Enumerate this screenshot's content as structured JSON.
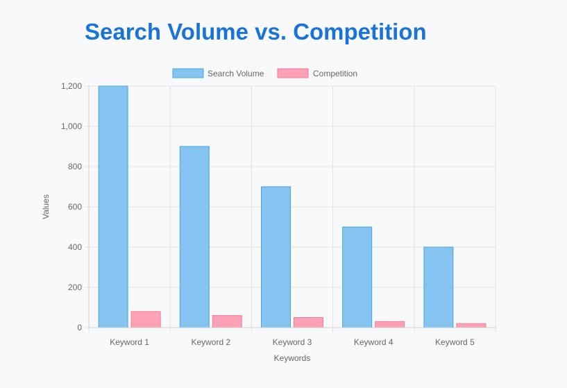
{
  "chart_data": {
    "type": "bar",
    "title": "Search Volume vs. Competition",
    "categories": [
      "Keyword 1",
      "Keyword 2",
      "Keyword 3",
      "Keyword 4",
      "Keyword 5"
    ],
    "series": [
      {
        "name": "Search Volume",
        "values": [
          1200,
          900,
          700,
          500,
          400
        ],
        "fill": "#85c4f0",
        "stroke": "#4ea3dc"
      },
      {
        "name": "Competition",
        "values": [
          80,
          60,
          50,
          30,
          20
        ],
        "fill": "#fda2b6",
        "stroke": "#f27a98"
      }
    ],
    "xlabel": "Keywords",
    "ylabel": "Values",
    "ylim": [
      0,
      1200
    ],
    "yticks": [
      0,
      200,
      400,
      600,
      800,
      1000,
      1200
    ],
    "ytick_labels": [
      "0",
      "200",
      "400",
      "600",
      "800",
      "1,000",
      "1,200"
    ],
    "grid": true,
    "legend_position": "top-center"
  },
  "colors": {
    "title": "#1a73d9",
    "grid": "#e3e3e3",
    "tick_text": "#666666"
  }
}
